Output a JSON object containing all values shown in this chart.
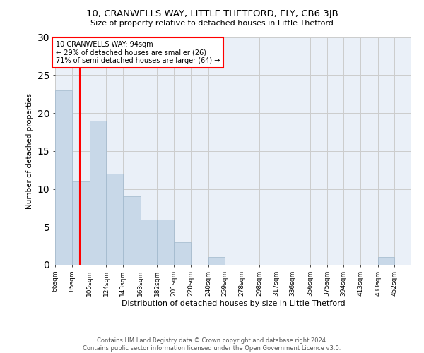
{
  "title": "10, CRANWELLS WAY, LITTLE THETFORD, ELY, CB6 3JB",
  "subtitle": "Size of property relative to detached houses in Little Thetford",
  "xlabel": "Distribution of detached houses by size in Little Thetford",
  "ylabel": "Number of detached properties",
  "footer_line1": "Contains HM Land Registry data © Crown copyright and database right 2024.",
  "footer_line2": "Contains public sector information licensed under the Open Government Licence v3.0.",
  "bin_labels": [
    "66sqm",
    "85sqm",
    "105sqm",
    "124sqm",
    "143sqm",
    "163sqm",
    "182sqm",
    "201sqm",
    "220sqm",
    "240sqm",
    "259sqm",
    "278sqm",
    "298sqm",
    "317sqm",
    "336sqm",
    "356sqm",
    "375sqm",
    "394sqm",
    "413sqm",
    "433sqm",
    "452sqm"
  ],
  "bar_values": [
    23,
    11,
    19,
    12,
    9,
    6,
    6,
    3,
    0,
    1,
    0,
    0,
    0,
    0,
    0,
    0,
    0,
    0,
    0,
    1,
    0
  ],
  "bar_color": "#c8d8e8",
  "bar_edge_color": "#a0b8cc",
  "vline_x_idx": 1,
  "vline_color": "red",
  "annotation_text": "10 CRANWELLS WAY: 94sqm\n← 29% of detached houses are smaller (26)\n71% of semi-detached houses are larger (64) →",
  "annotation_box_color": "white",
  "annotation_box_edge": "red",
  "ylim": [
    0,
    30
  ],
  "yticks": [
    0,
    5,
    10,
    15,
    20,
    25,
    30
  ],
  "grid_color": "#cccccc",
  "bg_color": "#eaf0f8",
  "bin_edges": [
    66,
    85,
    105,
    124,
    143,
    163,
    182,
    201,
    220,
    240,
    259,
    278,
    298,
    317,
    336,
    356,
    375,
    394,
    413,
    433,
    452
  ],
  "vline_x": 94
}
